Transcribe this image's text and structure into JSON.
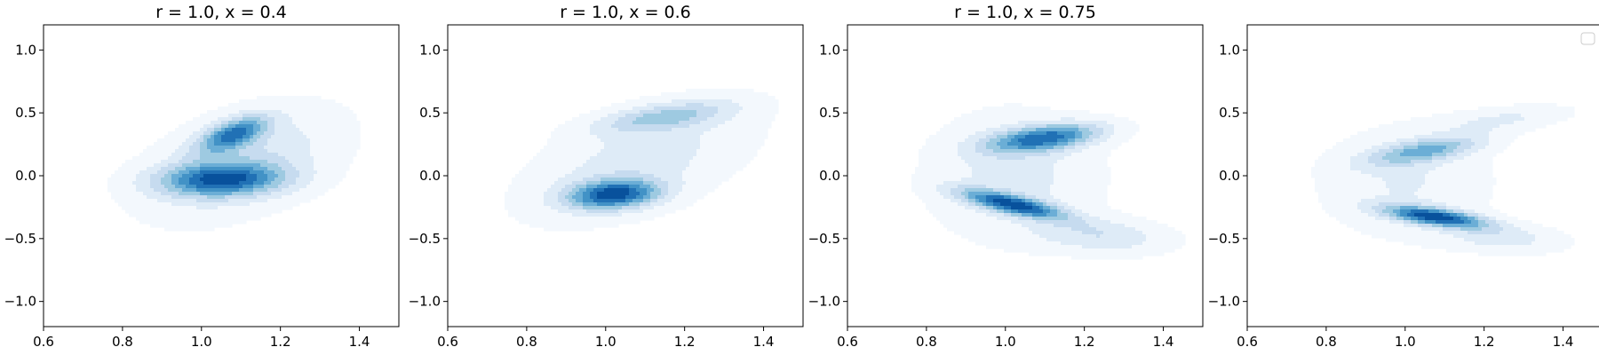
{
  "chart_data": [
    {
      "type": "contour",
      "title": "r = 1.0, x = 0.4",
      "xlim": [
        0.6,
        1.5
      ],
      "ylim": [
        -1.2,
        1.2
      ],
      "xticks": [
        "0.6",
        "0.8",
        "1.0",
        "1.2",
        "1.4"
      ],
      "yticks": [
        "−1.0",
        "−0.5",
        "0.0",
        "0.5",
        "1.0"
      ],
      "colormap": "Blues",
      "legend": null,
      "modes": [
        {
          "x": 1.08,
          "y": 0.33,
          "sx": 0.06,
          "sy": 0.1,
          "rho": 0.6,
          "w": 1.0
        },
        {
          "x": 1.05,
          "y": -0.03,
          "sx": 0.11,
          "sy": 0.09,
          "rho": 0.1,
          "w": 1.1
        },
        {
          "x": 1.1,
          "y": 0.1,
          "sx": 0.17,
          "sy": 0.3,
          "rho": 0.45,
          "w": 0.45
        }
      ]
    },
    {
      "type": "contour",
      "title": "r = 1.0, x = 0.6",
      "xlim": [
        0.6,
        1.5
      ],
      "ylim": [
        -1.2,
        1.2
      ],
      "xticks": [
        "0.6",
        "0.8",
        "1.0",
        "1.2",
        "1.4"
      ],
      "yticks": [
        "−1.0",
        "−0.5",
        "0.0",
        "0.5",
        "1.0"
      ],
      "colormap": "Blues",
      "legend": null,
      "modes": [
        {
          "x": 1.02,
          "y": -0.15,
          "sx": 0.08,
          "sy": 0.08,
          "rho": 0.2,
          "w": 1.2
        },
        {
          "x": 1.15,
          "y": 0.47,
          "sx": 0.12,
          "sy": 0.09,
          "rho": 0.55,
          "w": 0.55
        },
        {
          "x": 1.08,
          "y": 0.1,
          "sx": 0.2,
          "sy": 0.32,
          "rho": 0.55,
          "w": 0.35
        }
      ]
    },
    {
      "type": "contour",
      "title": "r = 1.0, x = 0.75",
      "xlim": [
        0.6,
        1.5
      ],
      "ylim": [
        -1.2,
        1.2
      ],
      "xticks": [
        "0.6",
        "0.8",
        "1.0",
        "1.2",
        "1.4"
      ],
      "yticks": [
        "−1.0",
        "−0.5",
        "0.0",
        "0.5",
        "1.0"
      ],
      "colormap": "Blues",
      "legend": null,
      "modes": [
        {
          "x": 1.1,
          "y": 0.3,
          "sx": 0.1,
          "sy": 0.08,
          "rho": 0.45,
          "w": 1.0
        },
        {
          "x": 1.02,
          "y": -0.23,
          "sx": 0.09,
          "sy": 0.08,
          "rho": -0.75,
          "w": 1.1
        },
        {
          "x": 1.25,
          "y": -0.48,
          "sx": 0.12,
          "sy": 0.1,
          "rho": -0.2,
          "w": 0.35
        },
        {
          "x": 1.02,
          "y": 0.0,
          "sx": 0.15,
          "sy": 0.35,
          "rho": 0.0,
          "w": 0.3
        }
      ]
    },
    {
      "type": "contour",
      "title": "",
      "xlim": [
        0.6,
        1.5
      ],
      "ylim": [
        -1.2,
        1.2
      ],
      "xticks": [
        "0.6",
        "0.8",
        "1.0",
        "1.2",
        "1.4"
      ],
      "yticks": [
        "−1.0",
        "−0.5",
        "0.0",
        "0.5",
        "1.0"
      ],
      "colormap": "Blues",
      "legend": "upper right (empty)",
      "modes": [
        {
          "x": 1.08,
          "y": -0.33,
          "sx": 0.09,
          "sy": 0.06,
          "rho": -0.6,
          "w": 1.2
        },
        {
          "x": 1.05,
          "y": 0.2,
          "sx": 0.1,
          "sy": 0.08,
          "rho": 0.6,
          "w": 0.65
        },
        {
          "x": 1.25,
          "y": 0.45,
          "sx": 0.12,
          "sy": 0.08,
          "rho": 0.5,
          "w": 0.25
        },
        {
          "x": 1.25,
          "y": -0.5,
          "sx": 0.11,
          "sy": 0.08,
          "rho": -0.2,
          "w": 0.3
        },
        {
          "x": 1.0,
          "y": -0.05,
          "sx": 0.15,
          "sy": 0.3,
          "rho": 0.0,
          "w": 0.25
        }
      ]
    }
  ]
}
